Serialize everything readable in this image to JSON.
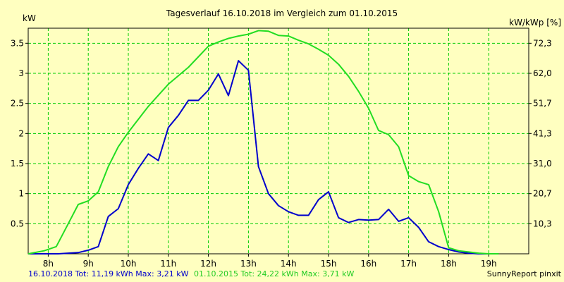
{
  "chart_data": {
    "type": "line",
    "title": "Tagesverlauf 16.10.2018 im Vergleich zum 01.10.2015",
    "ylabel_left": "kW",
    "ylabel_right": "kW/kWp [%]",
    "ylim": [
      0,
      3.75
    ],
    "xlim": [
      7.5,
      20
    ],
    "x_ticks": [
      {
        "x": 8,
        "label": "8h"
      },
      {
        "x": 9,
        "label": "9h"
      },
      {
        "x": 10,
        "label": "10h"
      },
      {
        "x": 11,
        "label": "11h"
      },
      {
        "x": 12,
        "label": "12h"
      },
      {
        "x": 13,
        "label": "13h"
      },
      {
        "x": 14,
        "label": "14h"
      },
      {
        "x": 15,
        "label": "15h"
      },
      {
        "x": 16,
        "label": "16h"
      },
      {
        "x": 17,
        "label": "17h"
      },
      {
        "x": 18,
        "label": "18h"
      },
      {
        "x": 19,
        "label": "19h"
      }
    ],
    "y_ticks_left": [
      {
        "y": 0.5,
        "label": "0.5"
      },
      {
        "y": 1,
        "label": "1"
      },
      {
        "y": 1.5,
        "label": "1.5"
      },
      {
        "y": 2,
        "label": "2"
      },
      {
        "y": 2.5,
        "label": "2.5"
      },
      {
        "y": 3,
        "label": "3"
      },
      {
        "y": 3.5,
        "label": "3.5"
      }
    ],
    "y_ticks_right": [
      {
        "y": 0.5,
        "label": "10,3"
      },
      {
        "y": 1,
        "label": "20,7"
      },
      {
        "y": 1.5,
        "label": "31,0"
      },
      {
        "y": 2,
        "label": "41,3"
      },
      {
        "y": 2.5,
        "label": "51,7"
      },
      {
        "y": 3,
        "label": "62,0"
      },
      {
        "y": 3.5,
        "label": "72,3"
      }
    ],
    "grid": true,
    "series": [
      {
        "color": "#0000cc",
        "x": [
          7.5,
          8.25,
          8.75,
          9.0,
          9.25,
          9.5,
          9.75,
          10.0,
          10.25,
          10.5,
          10.75,
          11.0,
          11.25,
          11.5,
          11.75,
          12.0,
          12.25,
          12.5,
          12.75,
          13.0,
          13.25,
          13.5,
          13.75,
          14.0,
          14.25,
          14.5,
          14.75,
          15.0,
          15.25,
          15.5,
          15.75,
          16.0,
          16.25,
          16.5,
          16.75,
          17.0,
          17.25,
          17.5,
          17.75,
          18.0,
          18.25,
          18.5,
          18.75,
          19.0
        ],
        "y": [
          0.0,
          0.0,
          0.02,
          0.06,
          0.12,
          0.62,
          0.75,
          1.15,
          1.42,
          1.66,
          1.55,
          2.1,
          2.3,
          2.55,
          2.55,
          2.72,
          2.99,
          2.63,
          3.21,
          3.05,
          1.45,
          1.0,
          0.8,
          0.7,
          0.64,
          0.64,
          0.9,
          1.03,
          0.6,
          0.52,
          0.57,
          0.56,
          0.57,
          0.74,
          0.54,
          0.6,
          0.44,
          0.2,
          0.12,
          0.07,
          0.03,
          0.01,
          0.0,
          0.0
        ]
      },
      {
        "color": "#22dd22",
        "x": [
          7.5,
          7.9,
          8.2,
          8.5,
          8.75,
          9.0,
          9.25,
          9.5,
          9.75,
          10.0,
          10.5,
          11.0,
          11.5,
          12.0,
          12.25,
          12.5,
          12.75,
          13.0,
          13.25,
          13.5,
          13.75,
          14.0,
          14.25,
          14.5,
          14.75,
          15.0,
          15.25,
          15.5,
          15.75,
          16.0,
          16.25,
          16.5,
          16.75,
          17.0,
          17.25,
          17.5,
          17.75,
          18.0,
          18.25,
          18.5,
          18.75,
          19.0,
          19.25
        ],
        "y": [
          0.0,
          0.05,
          0.12,
          0.5,
          0.82,
          0.88,
          1.03,
          1.45,
          1.78,
          2.02,
          2.45,
          2.82,
          3.1,
          3.45,
          3.52,
          3.58,
          3.62,
          3.65,
          3.71,
          3.7,
          3.63,
          3.62,
          3.55,
          3.49,
          3.4,
          3.3,
          3.15,
          2.95,
          2.7,
          2.42,
          2.05,
          1.98,
          1.78,
          1.3,
          1.2,
          1.15,
          0.7,
          0.1,
          0.05,
          0.03,
          0.01,
          0.0,
          0.0
        ]
      }
    ],
    "footer": {
      "left_blue": "16.10.2018 Tot: 11,19 kWh Max: 3,21 kW",
      "left_green": "01.10.2015 Tot: 24,22 kWh Max: 3,71 kW",
      "right": "SunnyReport pinxit"
    }
  }
}
